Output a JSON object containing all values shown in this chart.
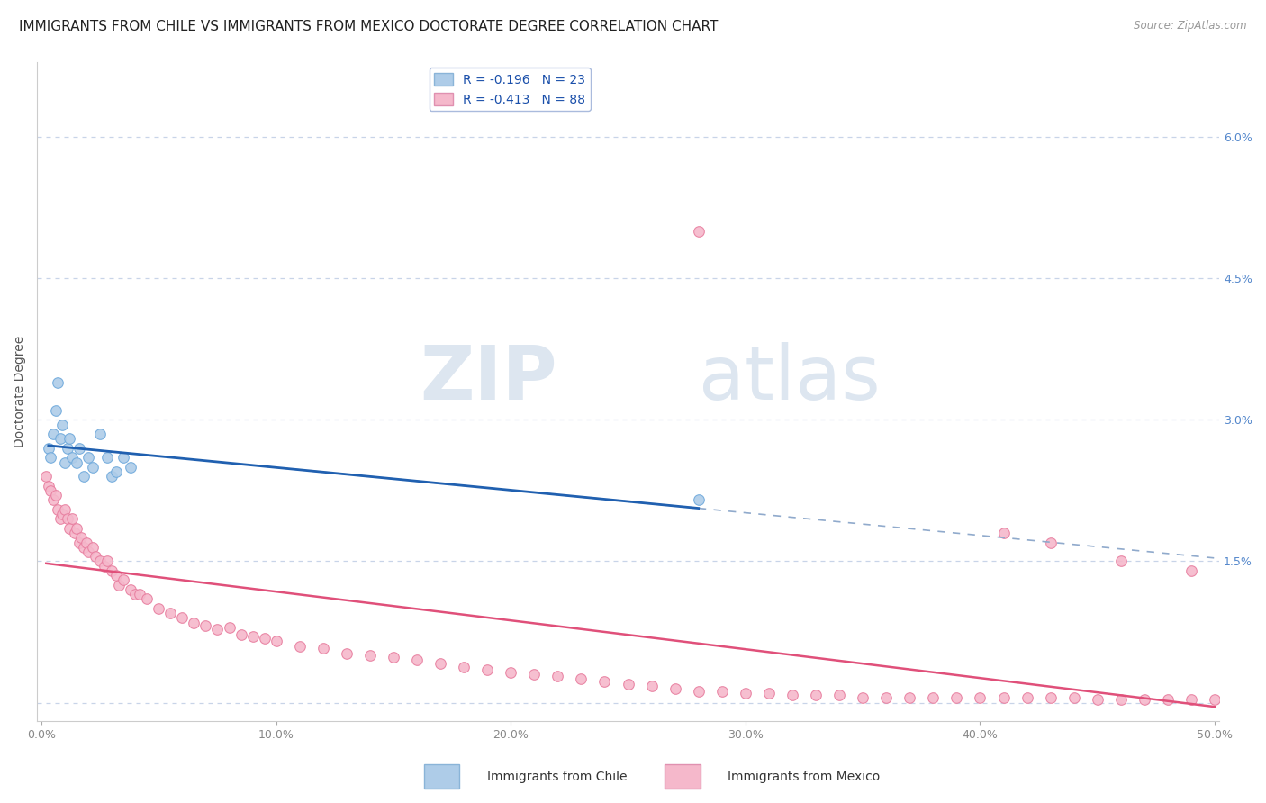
{
  "title": "IMMIGRANTS FROM CHILE VS IMMIGRANTS FROM MEXICO DOCTORATE DEGREE CORRELATION CHART",
  "source": "Source: ZipAtlas.com",
  "xlabel": "",
  "ylabel": "Doctorate Degree",
  "xlim": [
    -0.002,
    0.502
  ],
  "ylim": [
    -0.002,
    0.068
  ],
  "yticks": [
    0.0,
    0.015,
    0.03,
    0.045,
    0.06
  ],
  "ytick_labels": [
    "",
    "1.5%",
    "3.0%",
    "4.5%",
    "6.0%"
  ],
  "xticks": [
    0.0,
    0.1,
    0.2,
    0.3,
    0.4,
    0.5
  ],
  "xtick_labels": [
    "0.0%",
    "10.0%",
    "20.0%",
    "30.0%",
    "40.0%",
    "50.0%"
  ],
  "chile_color": "#aecce8",
  "chile_edge_color": "#70aadc",
  "mexico_color": "#f5b8cb",
  "mexico_edge_color": "#e87fa0",
  "chile_line_color": "#2060b0",
  "mexico_line_color": "#e0507a",
  "dashed_line_color": "#90aacc",
  "legend_chile_label": "R = -0.196   N = 23",
  "legend_mexico_label": "R = -0.413   N = 88",
  "legend_title_chile": "Immigrants from Chile",
  "legend_title_mexico": "Immigrants from Mexico",
  "background_color": "#ffffff",
  "grid_color": "#c8d4e8",
  "title_fontsize": 11,
  "axis_label_fontsize": 10,
  "tick_fontsize": 9,
  "tick_color": "#888888",
  "right_tick_color": "#5588cc",
  "marker_size": 70,
  "chile_x": [
    0.003,
    0.004,
    0.005,
    0.006,
    0.007,
    0.008,
    0.009,
    0.01,
    0.011,
    0.012,
    0.013,
    0.015,
    0.016,
    0.018,
    0.02,
    0.022,
    0.025,
    0.028,
    0.03,
    0.032,
    0.035,
    0.038,
    0.28
  ],
  "chile_y": [
    0.027,
    0.026,
    0.0285,
    0.031,
    0.034,
    0.028,
    0.0295,
    0.0255,
    0.027,
    0.028,
    0.026,
    0.0255,
    0.027,
    0.024,
    0.026,
    0.025,
    0.0285,
    0.026,
    0.024,
    0.0245,
    0.026,
    0.025,
    0.0215
  ],
  "mexico_x": [
    0.002,
    0.003,
    0.004,
    0.005,
    0.006,
    0.007,
    0.008,
    0.009,
    0.01,
    0.011,
    0.012,
    0.013,
    0.014,
    0.015,
    0.016,
    0.017,
    0.018,
    0.019,
    0.02,
    0.022,
    0.023,
    0.025,
    0.027,
    0.028,
    0.03,
    0.032,
    0.033,
    0.035,
    0.038,
    0.04,
    0.042,
    0.045,
    0.05,
    0.055,
    0.06,
    0.065,
    0.07,
    0.075,
    0.08,
    0.085,
    0.09,
    0.095,
    0.1,
    0.11,
    0.12,
    0.13,
    0.14,
    0.15,
    0.16,
    0.17,
    0.18,
    0.19,
    0.2,
    0.21,
    0.22,
    0.23,
    0.24,
    0.25,
    0.26,
    0.27,
    0.28,
    0.29,
    0.3,
    0.31,
    0.32,
    0.33,
    0.34,
    0.35,
    0.36,
    0.37,
    0.38,
    0.39,
    0.4,
    0.41,
    0.42,
    0.43,
    0.44,
    0.45,
    0.46,
    0.47,
    0.48,
    0.49,
    0.5,
    0.28,
    0.41,
    0.43,
    0.46,
    0.49
  ],
  "mexico_y": [
    0.024,
    0.023,
    0.0225,
    0.0215,
    0.022,
    0.0205,
    0.0195,
    0.02,
    0.0205,
    0.0195,
    0.0185,
    0.0195,
    0.018,
    0.0185,
    0.017,
    0.0175,
    0.0165,
    0.017,
    0.016,
    0.0165,
    0.0155,
    0.015,
    0.0145,
    0.015,
    0.014,
    0.0135,
    0.0125,
    0.013,
    0.012,
    0.0115,
    0.0115,
    0.011,
    0.01,
    0.0095,
    0.009,
    0.0085,
    0.0082,
    0.0078,
    0.008,
    0.0072,
    0.007,
    0.0068,
    0.0065,
    0.006,
    0.0058,
    0.0052,
    0.005,
    0.0048,
    0.0045,
    0.0042,
    0.0038,
    0.0035,
    0.0032,
    0.003,
    0.0028,
    0.0025,
    0.0022,
    0.002,
    0.0018,
    0.0015,
    0.0012,
    0.0012,
    0.001,
    0.001,
    0.0008,
    0.0008,
    0.0008,
    0.0005,
    0.0005,
    0.0005,
    0.0005,
    0.0005,
    0.0005,
    0.0005,
    0.0005,
    0.0005,
    0.0005,
    0.0003,
    0.0003,
    0.0003,
    0.0003,
    0.0003,
    0.0003,
    0.05,
    0.018,
    0.017,
    0.015,
    0.014
  ]
}
